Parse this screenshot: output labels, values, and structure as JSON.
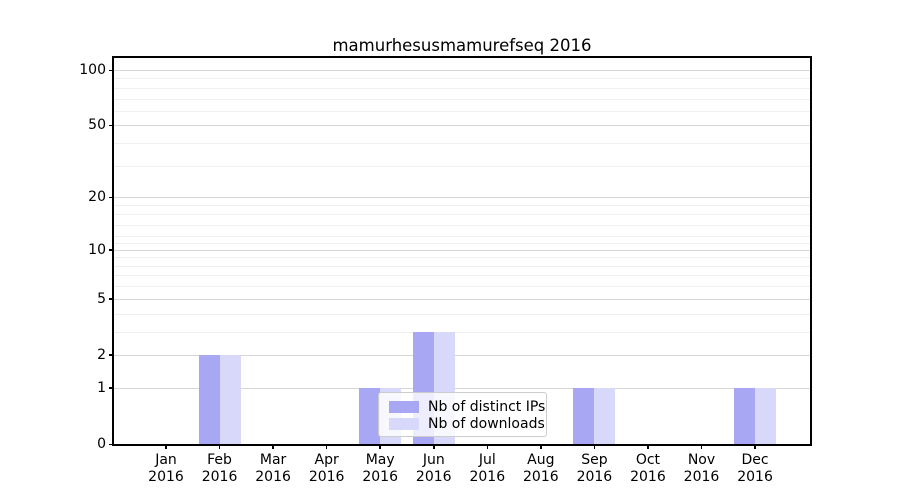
{
  "chart_data": {
    "type": "bar",
    "title": "mamurhesusmamurefseq 2016",
    "categories": [
      "Jan 2016",
      "Feb 2016",
      "Mar 2016",
      "Apr 2016",
      "May 2016",
      "Jun 2016",
      "Jul 2016",
      "Aug 2016",
      "Sep 2016",
      "Oct 2016",
      "Nov 2016",
      "Dec 2016"
    ],
    "series": [
      {
        "name": "Nb of distinct IPs",
        "color": "#a7a7f3",
        "values": [
          0,
          2,
          0,
          0,
          1,
          3,
          0,
          0,
          1,
          0,
          0,
          1
        ]
      },
      {
        "name": "Nb of downloads",
        "color": "#d8d8fa",
        "values": [
          0,
          2,
          0,
          0,
          1,
          3,
          0,
          0,
          1,
          0,
          0,
          1
        ]
      }
    ],
    "xlabel": "",
    "ylabel": "",
    "yscale": "log1p",
    "y_major_ticks": [
      0,
      1,
      2,
      5,
      10,
      20,
      50,
      100
    ],
    "y_minor_gridlines": [
      3,
      4,
      6,
      7,
      8,
      9,
      11,
      12,
      14,
      16,
      18,
      30,
      40,
      60,
      70,
      80,
      90
    ],
    "ylim": [
      0,
      116
    ],
    "grid": "horizontal",
    "legend_position": "lower center"
  },
  "colors": {
    "bar_distinct_ips": "#a7a7f3",
    "bar_downloads": "#d8d8fa",
    "grid_major": "#d6d6d6",
    "grid_minor": "#efefef",
    "axis": "#000000",
    "background": "#ffffff",
    "legend_border": "#cccccc"
  }
}
